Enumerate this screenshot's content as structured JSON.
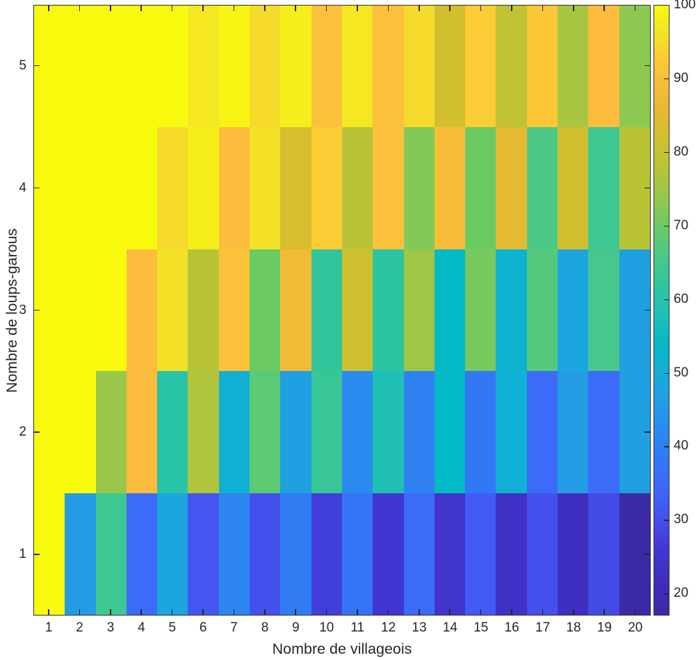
{
  "chart_data": {
    "type": "heatmap",
    "title": "",
    "xlabel": "Nombre de villageois",
    "ylabel": "Nombre de loups-garous",
    "x_categories": [
      1,
      2,
      3,
      4,
      5,
      6,
      7,
      8,
      9,
      10,
      11,
      12,
      13,
      14,
      15,
      16,
      17,
      18,
      19,
      20
    ],
    "y_categories_top_to_bottom": [
      5,
      4,
      3,
      2,
      1
    ],
    "rows_top_to_bottom": [
      {
        "loups_garous": 5,
        "values": [
          100,
          100,
          100,
          100,
          100,
          97,
          99,
          95,
          98,
          91,
          97,
          91,
          95,
          82,
          93,
          79,
          92,
          76,
          90,
          73
        ]
      },
      {
        "loups_garous": 4,
        "values": [
          100,
          100,
          100,
          100,
          95,
          98,
          90,
          96,
          83,
          93,
          78,
          91,
          72,
          89,
          70,
          86,
          66,
          82,
          64,
          78
        ]
      },
      {
        "loups_garous": 3,
        "values": [
          100,
          100,
          100,
          90,
          96,
          78,
          91,
          70,
          88,
          62,
          81,
          61,
          75,
          54,
          71,
          52,
          67,
          48,
          65,
          47
        ]
      },
      {
        "loups_garous": 2,
        "values": [
          100,
          100,
          74,
          90,
          60,
          77,
          51,
          68,
          47,
          63,
          42,
          58,
          40,
          54,
          38,
          51,
          35,
          46,
          35,
          47
        ]
      },
      {
        "loups_garous": 1,
        "values": [
          100,
          46,
          64,
          35,
          48,
          31,
          41,
          30,
          39,
          27,
          37,
          25,
          35,
          24,
          32,
          23,
          30,
          22,
          29,
          17
        ]
      }
    ],
    "colorbar": {
      "min": 17,
      "max": 100,
      "ticks": [
        20,
        30,
        40,
        50,
        60,
        70,
        80,
        90,
        100
      ],
      "colormap_name": "parula",
      "colormap_stops": [
        [
          17,
          "#3b2aa5"
        ],
        [
          22,
          "#3e2fc0"
        ],
        [
          26,
          "#4138d5"
        ],
        [
          30,
          "#4450ec"
        ],
        [
          34,
          "#3f66fb"
        ],
        [
          38,
          "#3278f4"
        ],
        [
          42,
          "#2b8aef"
        ],
        [
          46,
          "#249ce4"
        ],
        [
          50,
          "#14add8"
        ],
        [
          54,
          "#04b9c6"
        ],
        [
          58,
          "#1fc0b3"
        ],
        [
          62,
          "#32c59c"
        ],
        [
          66,
          "#4cc986"
        ],
        [
          70,
          "#6cca63"
        ],
        [
          74,
          "#98c74b"
        ],
        [
          78,
          "#b8c436"
        ],
        [
          82,
          "#d2bf2f"
        ],
        [
          86,
          "#e6ba32"
        ],
        [
          90,
          "#fcbc3d"
        ],
        [
          93,
          "#fbcc33"
        ],
        [
          96,
          "#f4e127"
        ],
        [
          100,
          "#f8fa0e"
        ]
      ]
    },
    "layout": {
      "grid": "off",
      "legend": "colorbar-right",
      "axis_color": "#262626"
    }
  }
}
